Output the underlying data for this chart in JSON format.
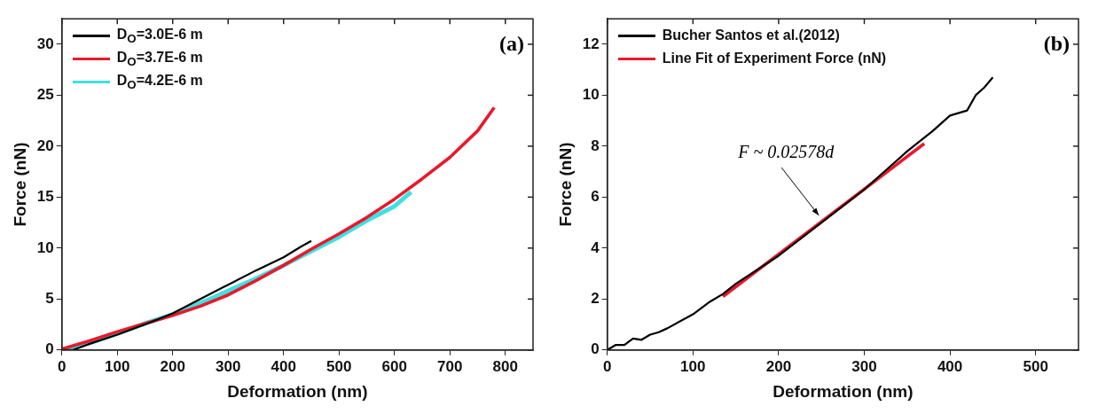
{
  "chart_data": [
    {
      "type": "line",
      "xlabel": "Deformation (nm)",
      "ylabel": "Force (nN)",
      "xlim": [
        0,
        850
      ],
      "xticks": [
        0,
        100,
        200,
        300,
        400,
        500,
        600,
        700,
        800
      ],
      "ylim": [
        0,
        32.5
      ],
      "yticks": [
        0,
        5,
        10,
        15,
        20,
        25,
        30
      ],
      "grid": false,
      "legend": "top left",
      "marker": "none",
      "annotations": [
        "(a)"
      ],
      "series": [
        {
          "name": "D$_{O}$=3.0E-6 m",
          "color": "#000000",
          "x": [
            0,
            20,
            50,
            100,
            150,
            200,
            250,
            300,
            350,
            400,
            430,
            450
          ],
          "values": [
            0,
            0,
            0.6,
            1.5,
            2.5,
            3.6,
            5.0,
            6.4,
            7.8,
            9.1,
            10.1,
            10.7
          ]
        },
        {
          "name": "D$_{O}$=3.7E-6 m",
          "color": "#e8192c",
          "x": [
            0,
            50,
            100,
            150,
            200,
            250,
            300,
            350,
            400,
            450,
            500,
            550,
            600,
            650,
            700,
            750,
            780
          ],
          "values": [
            0.1,
            0.9,
            1.8,
            2.6,
            3.4,
            4.3,
            5.4,
            6.8,
            8.3,
            9.9,
            11.4,
            13.0,
            14.8,
            16.8,
            18.9,
            21.5,
            23.8
          ]
        },
        {
          "name": "D$_{O}$=4.2E-6 m",
          "color": "#40e0e0",
          "x": [
            0,
            50,
            100,
            150,
            200,
            250,
            300,
            350,
            400,
            450,
            500,
            550,
            600,
            630
          ],
          "values": [
            0,
            0.7,
            1.6,
            2.6,
            3.5,
            4.6,
            5.8,
            7.0,
            8.3,
            9.7,
            11.1,
            12.7,
            14.1,
            15.5
          ]
        }
      ]
    },
    {
      "type": "line",
      "xlabel": "Deformation (nm)",
      "ylabel": "Force (nN)",
      "xlim": [
        0,
        550
      ],
      "xticks": [
        0,
        100,
        200,
        300,
        400,
        500
      ],
      "ylim": [
        0,
        13
      ],
      "yticks": [
        0,
        2,
        4,
        6,
        8,
        10,
        12
      ],
      "grid": false,
      "legend": "top left",
      "marker": "none",
      "annotations": [
        "(b)",
        {
          "text": "F ~ 0.02578d",
          "x": 250,
          "y": 5.0
        }
      ],
      "series": [
        {
          "name": "Bucher Santos et al.(2012)",
          "color": "#000000",
          "x": [
            0,
            10,
            20,
            30,
            40,
            50,
            60,
            70,
            100,
            120,
            135,
            150,
            200,
            250,
            300,
            320,
            350,
            380,
            400,
            420,
            430,
            440,
            450
          ],
          "values": [
            0,
            0.2,
            0.2,
            0.45,
            0.4,
            0.6,
            0.7,
            0.85,
            1.4,
            1.9,
            2.2,
            2.6,
            3.7,
            5.0,
            6.3,
            6.9,
            7.8,
            8.6,
            9.2,
            9.4,
            10.0,
            10.3,
            10.7
          ]
        },
        {
          "name": "Line Fit of Experiment Force (nN)",
          "color": "#e8192c",
          "type": "line",
          "x": [
            135,
            370
          ],
          "values": [
            2.1,
            8.1
          ]
        }
      ]
    }
  ]
}
